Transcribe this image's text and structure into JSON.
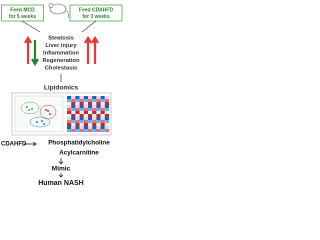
{
  "top": {
    "left_box": [
      "Feed MCD",
      "for 5 weeks"
    ],
    "right_box": [
      "Feed CDAHFD",
      "for 3 weeks"
    ]
  },
  "phenotypes": [
    "Steatosis",
    "Liver injury",
    "Inflammation",
    "Regeneration",
    "Cholestasis"
  ],
  "lipidomics": {
    "title": "Lipidomics"
  },
  "findings": {
    "model": "CDAHFD",
    "lipids": [
      "Phosphatidylcholine",
      "Acylcarnitine"
    ],
    "verb": "Mimic",
    "target": "Human NASH"
  }
}
